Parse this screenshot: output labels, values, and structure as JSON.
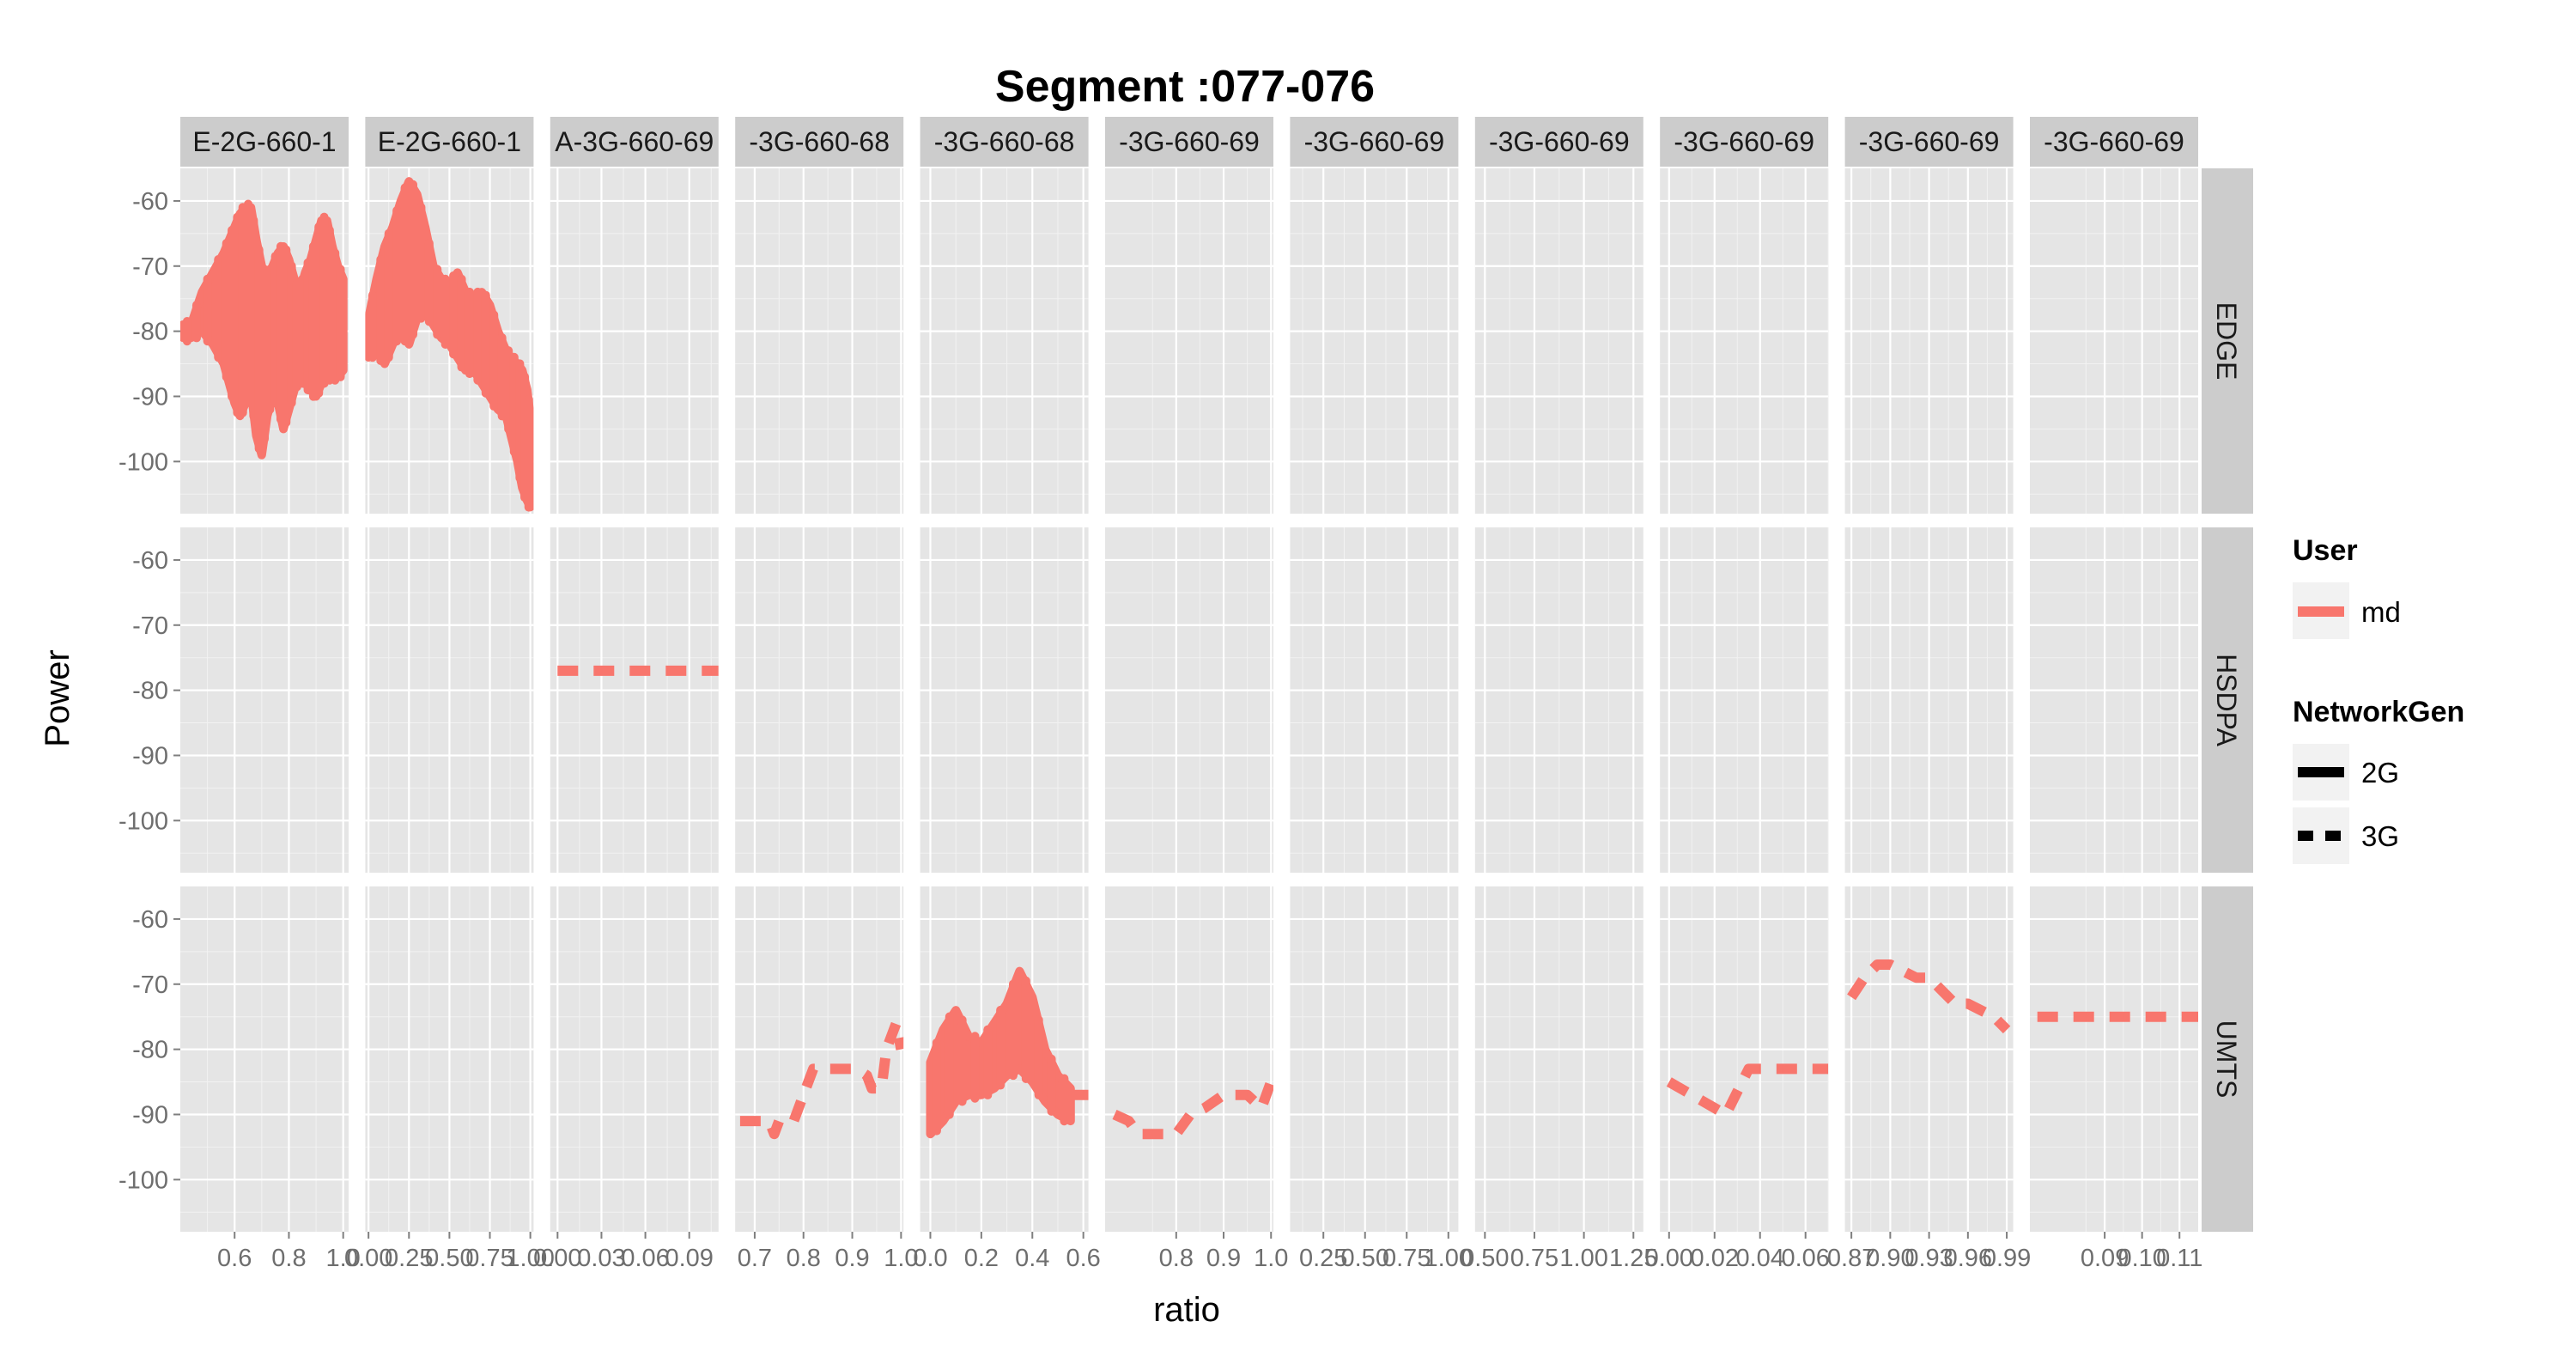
{
  "chart_data": {
    "type": "line",
    "title": "Segment :077-076",
    "xlabel": "ratio",
    "ylabel": "Power",
    "ylim": [
      -108,
      -55
    ],
    "y_ticks": [
      -100,
      -90,
      -80,
      -70,
      -60
    ],
    "y_tick_labels": [
      "-100",
      "-90",
      "-80",
      "-70",
      "-60"
    ],
    "grid": true,
    "line_color": "#F8766D",
    "rows": [
      "EDGE",
      "HSDPA",
      "UMTS"
    ],
    "columns": [
      {
        "label": "E-2G-660-1",
        "xlim": [
          0.4,
          1.02
        ],
        "ticks": [
          0.6,
          0.8,
          1.0
        ],
        "tick_labels": [
          "0.6",
          "0.8",
          "1.0"
        ]
      },
      {
        "label": "E-2G-660-1",
        "xlim": [
          -0.02,
          1.02
        ],
        "ticks": [
          0.0,
          0.25,
          0.5,
          0.75,
          1.0
        ],
        "tick_labels": [
          "0.00",
          "0.25",
          "0.50",
          "0.75",
          "1.00"
        ]
      },
      {
        "label": "A-3G-660-69",
        "xlim": [
          -0.005,
          0.11
        ],
        "ticks": [
          0.0,
          0.03,
          0.06,
          0.09
        ],
        "tick_labels": [
          "0.00",
          "0.03",
          "0.06",
          "0.09"
        ]
      },
      {
        "label": "-3G-660-68",
        "xlim": [
          0.66,
          1.005
        ],
        "ticks": [
          0.7,
          0.8,
          0.9,
          1.0
        ],
        "tick_labels": [
          "0.7",
          "0.8",
          "0.9",
          "1.0"
        ]
      },
      {
        "label": "-3G-660-68",
        "xlim": [
          -0.04,
          0.62
        ],
        "ticks": [
          0.0,
          0.2,
          0.4,
          0.6
        ],
        "tick_labels": [
          "0.0",
          "0.2",
          "0.4",
          "0.6"
        ]
      },
      {
        "label": "-3G-660-69",
        "xlim": [
          0.65,
          1.005
        ],
        "ticks": [
          0.8,
          0.9,
          1.0
        ],
        "tick_labels": [
          "0.8",
          "0.9",
          "1.0"
        ]
      },
      {
        "label": "-3G-660-69",
        "xlim": [
          0.05,
          1.06
        ],
        "ticks": [
          0.25,
          0.5,
          0.75,
          1.0
        ],
        "tick_labels": [
          "0.25",
          "0.50",
          "0.75",
          "1.00"
        ]
      },
      {
        "label": "-3G-660-69",
        "xlim": [
          0.45,
          1.3
        ],
        "ticks": [
          0.5,
          0.75,
          1.0,
          1.25
        ],
        "tick_labels": [
          "0.50",
          "0.75",
          "1.00",
          "1.25"
        ]
      },
      {
        "label": "-3G-660-69",
        "xlim": [
          -0.004,
          0.07
        ],
        "ticks": [
          0.0,
          0.02,
          0.04,
          0.06
        ],
        "tick_labels": [
          "0.00",
          "0.02",
          "0.04",
          "0.06"
        ]
      },
      {
        "label": "-3G-660-69",
        "xlim": [
          0.865,
          0.995
        ],
        "ticks": [
          0.87,
          0.9,
          0.93,
          0.96,
          0.99
        ],
        "tick_labels": [
          "0.87",
          "0.90",
          "0.93",
          "0.96",
          "0.99"
        ]
      },
      {
        "label": "-3G-660-69",
        "xlim": [
          0.07,
          0.115
        ],
        "ticks": [
          0.09,
          0.1,
          0.11
        ],
        "tick_labels": [
          "0.09",
          "0.10",
          "0.11"
        ]
      }
    ],
    "series": [
      {
        "row": 0,
        "col": 0,
        "linetype": "solid",
        "band": true,
        "x": [
          0.41,
          0.44,
          0.48,
          0.52,
          0.56,
          0.58,
          0.6,
          0.62,
          0.64,
          0.66,
          0.68,
          0.7,
          0.72,
          0.74,
          0.76,
          0.78,
          0.8,
          0.82,
          0.84,
          0.86,
          0.88,
          0.9,
          0.92,
          0.94,
          0.96,
          0.98,
          1.0
        ],
        "hi": [
          -79,
          -79,
          -74,
          -71,
          -68,
          -66,
          -64,
          -62,
          -61,
          -61,
          -66,
          -70,
          -72,
          -70,
          -68,
          -67,
          -69,
          -72,
          -74,
          -71,
          -69,
          -66,
          -63,
          -63,
          -67,
          -70,
          -72
        ],
        "lo": [
          -81,
          -81,
          -80,
          -82,
          -85,
          -88,
          -91,
          -93,
          -91,
          -89,
          -96,
          -99,
          -93,
          -90,
          -91,
          -95,
          -92,
          -89,
          -87,
          -88,
          -89,
          -90,
          -88,
          -87,
          -87,
          -87,
          -86
        ]
      },
      {
        "row": 0,
        "col": 1,
        "linetype": "solid",
        "band": true,
        "x": [
          0.0,
          0.05,
          0.1,
          0.15,
          0.2,
          0.25,
          0.3,
          0.35,
          0.4,
          0.45,
          0.5,
          0.55,
          0.6,
          0.65,
          0.7,
          0.75,
          0.8,
          0.85,
          0.88,
          0.92,
          0.95,
          0.98,
          1.0
        ],
        "hi": [
          -78,
          -72,
          -67,
          -64,
          -60,
          -57,
          -59,
          -64,
          -70,
          -72,
          -73,
          -71,
          -74,
          -75,
          -74,
          -76,
          -80,
          -83,
          -84,
          -85,
          -86,
          -89,
          -93
        ],
        "lo": [
          -84,
          -83,
          -85,
          -82,
          -80,
          -82,
          -78,
          -77,
          -79,
          -81,
          -82,
          -84,
          -86,
          -86,
          -88,
          -90,
          -92,
          -93,
          -96,
          -100,
          -104,
          -106,
          -107
        ]
      },
      {
        "row": 1,
        "col": 2,
        "linetype": "dashed",
        "band": false,
        "x": [
          0.0,
          0.11
        ],
        "y": [
          -77,
          -77
        ]
      },
      {
        "row": 2,
        "col": 3,
        "linetype": "dashed",
        "band": false,
        "x": [
          0.67,
          0.7,
          0.73,
          0.74,
          0.75,
          0.78,
          0.8,
          0.82,
          0.85,
          0.88,
          0.91,
          0.93,
          0.94,
          0.96,
          0.97,
          0.99,
          1.0
        ],
        "y": [
          -91,
          -91,
          -91,
          -93,
          -91,
          -91,
          -87,
          -83,
          -83,
          -83,
          -83,
          -84,
          -86,
          -86,
          -80,
          -76,
          -80
        ]
      },
      {
        "row": 2,
        "col": 4,
        "linetype": "solid",
        "band": true,
        "x": [
          0.0,
          0.05,
          0.1,
          0.15,
          0.2,
          0.25,
          0.3,
          0.35,
          0.4,
          0.45,
          0.5,
          0.55
        ],
        "hi": [
          -82,
          -77,
          -74,
          -78,
          -79,
          -76,
          -73,
          -68,
          -72,
          -80,
          -84,
          -86
        ],
        "lo": [
          -93,
          -91,
          -88,
          -87,
          -87,
          -86,
          -84,
          -83,
          -85,
          -88,
          -90,
          -91
        ]
      },
      {
        "row": 2,
        "col": 4,
        "linetype": "dashed",
        "band": false,
        "x": [
          0.55,
          0.58,
          0.62
        ],
        "y": [
          -87,
          -87,
          -87
        ]
      },
      {
        "row": 2,
        "col": 5,
        "linetype": "dashed",
        "band": false,
        "x": [
          0.67,
          0.7,
          0.72,
          0.76,
          0.8,
          0.83,
          0.86,
          0.9,
          0.95,
          0.98,
          1.0
        ],
        "y": [
          -90,
          -91,
          -93,
          -93,
          -93,
          -90,
          -89,
          -87,
          -87,
          -89,
          -85
        ]
      },
      {
        "row": 2,
        "col": 8,
        "linetype": "dashed",
        "band": false,
        "x": [
          0.0,
          0.005,
          0.015,
          0.025,
          0.035,
          0.045,
          0.06,
          0.07
        ],
        "y": [
          -85,
          -86,
          -88,
          -90,
          -83,
          -83,
          -83,
          -83
        ]
      },
      {
        "row": 2,
        "col": 9,
        "linetype": "dashed",
        "band": false,
        "x": [
          0.87,
          0.88,
          0.89,
          0.9,
          0.92,
          0.93,
          0.94,
          0.95,
          0.96,
          0.97,
          0.98,
          0.99
        ],
        "y": [
          -72,
          -69,
          -67,
          -67,
          -69,
          -69,
          -71,
          -73,
          -73,
          -74,
          -75,
          -77
        ]
      },
      {
        "row": 2,
        "col": 10,
        "linetype": "dashed",
        "band": false,
        "x": [
          0.072,
          0.115
        ],
        "y": [
          -75,
          -75
        ]
      }
    ],
    "legend": {
      "position": "right",
      "user_title": "User",
      "user_items": [
        {
          "label": "md",
          "color": "#F8766D"
        }
      ],
      "gen_title": "NetworkGen",
      "gen_items": [
        {
          "label": "2G",
          "linetype": "solid"
        },
        {
          "label": "3G",
          "linetype": "dashed"
        }
      ]
    }
  }
}
